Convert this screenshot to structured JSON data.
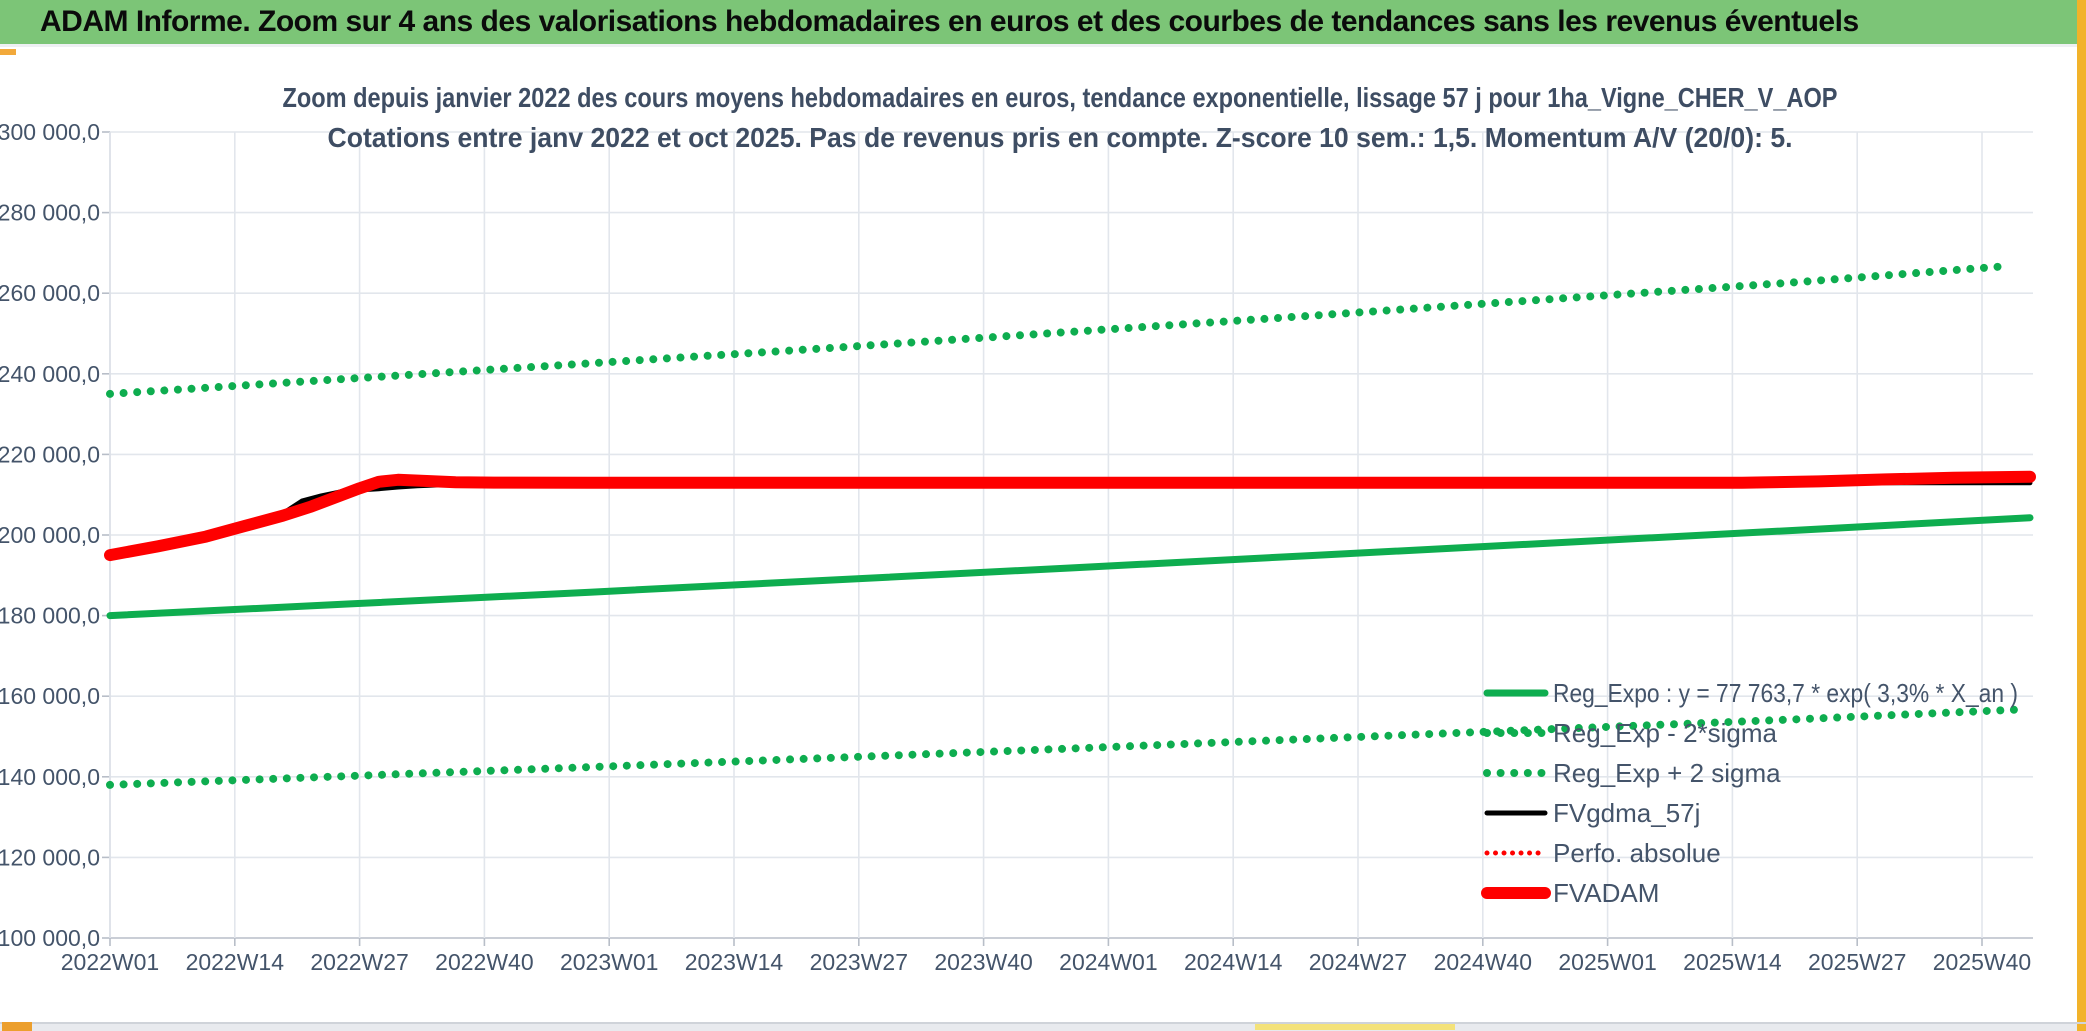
{
  "header": {
    "title": "ADAM Informe. Zoom sur 4 ans des valorisations hebdomadaires en euros et des courbes de tendances sans les revenus éventuels"
  },
  "frame": {
    "header_green": "#7CC577",
    "accent_gold": "#F2B32A",
    "accent_orange": "#EC9F2D"
  },
  "chart_data": {
    "type": "line",
    "title_line1": "Zoom depuis janvier 2022 des cours moyens hebdomadaires en euros, tendance exponentielle, lissage 57 j pour 1ha_Vigne_CHER_V_AOP",
    "title_line2": "Cotations entre janv 2022 et oct 2025. Pas de revenus pris en compte. Z-score 10 sem.: 1,5. Momentum A/V (20/0): 5.",
    "grid": true,
    "legend_position": "inside-bottom-right",
    "ylim": [
      100000,
      300000
    ],
    "y_ticks": [
      300000,
      280000,
      260000,
      240000,
      220000,
      200000,
      180000,
      160000,
      140000,
      120000,
      100000
    ],
    "y_tick_labels": [
      "300 000,0",
      "280 000,0",
      "260 000,0",
      "240 000,0",
      "220 000,0",
      "200 000,0",
      "180 000,0",
      "160 000,0",
      "140 000,0",
      "120 000,0",
      "100 000,0"
    ],
    "x_tick_labels": [
      "2022W01",
      "2022W14",
      "2022W27",
      "2022W40",
      "2023W01",
      "2023W14",
      "2023W27",
      "2023W40",
      "2024W01",
      "2024W14",
      "2024W27",
      "2024W40",
      "2025W01",
      "2025W14",
      "2025W27",
      "2025W40"
    ],
    "x_tick_weeks": [
      0,
      13,
      26,
      39,
      52,
      65,
      78,
      91,
      104,
      117,
      130,
      143,
      156,
      169,
      182,
      195
    ],
    "x_range_weeks": [
      0,
      200
    ],
    "series": [
      {
        "name": "Reg_Expo : y = 77 763,7 * exp( 3,3% * X_an )",
        "color": "#0EAD4F",
        "style": "solid",
        "width": 7,
        "z": 2,
        "points": [
          [
            0,
            180000
          ],
          [
            25,
            182900
          ],
          [
            50,
            185800
          ],
          [
            75,
            188800
          ],
          [
            100,
            191800
          ],
          [
            125,
            194900
          ],
          [
            150,
            198000
          ],
          [
            175,
            201100
          ],
          [
            200,
            204300
          ]
        ]
      },
      {
        "name": "Reg_Exp - 2*sigma",
        "color": "#0EAD4F",
        "style": "dotted",
        "width": 8,
        "z": 0,
        "points": [
          [
            0,
            138000
          ],
          [
            25,
            140200
          ],
          [
            50,
            142400
          ],
          [
            75,
            144700
          ],
          [
            100,
            147000
          ],
          [
            125,
            149400
          ],
          [
            150,
            151800
          ],
          [
            175,
            154200
          ],
          [
            199,
            156700
          ]
        ]
      },
      {
        "name": "Reg_Exp + 2 sigma",
        "color": "#0EAD4F",
        "style": "dotted",
        "width": 8,
        "z": 1,
        "points": [
          [
            0,
            235000
          ],
          [
            25,
            238800
          ],
          [
            50,
            242600
          ],
          [
            75,
            246400
          ],
          [
            100,
            250400
          ],
          [
            125,
            254400
          ],
          [
            150,
            258500
          ],
          [
            175,
            262600
          ],
          [
            198,
            266800
          ]
        ]
      },
      {
        "name": "FVgdma_57j",
        "color": "#000000",
        "style": "solid",
        "width": 5,
        "z": 4,
        "points": [
          [
            0,
            195000
          ],
          [
            6,
            197400
          ],
          [
            12,
            200200
          ],
          [
            16,
            203400
          ],
          [
            18,
            205300
          ],
          [
            20,
            208400
          ],
          [
            22,
            209700
          ],
          [
            24,
            210700
          ],
          [
            26,
            211200
          ],
          [
            28,
            211500
          ],
          [
            30,
            211900
          ],
          [
            32,
            212200
          ],
          [
            35,
            212500
          ],
          [
            38,
            212750
          ],
          [
            42,
            212900
          ],
          [
            48,
            212950
          ],
          [
            200,
            212950
          ]
        ]
      },
      {
        "name": "Perfo. absolue",
        "color": "#FE0000",
        "style": "dotted",
        "width": 5,
        "z": 3,
        "points": [
          [
            0,
            195000
          ],
          [
            5,
            197200
          ],
          [
            10,
            199600
          ],
          [
            14,
            202200
          ],
          [
            18,
            204800
          ],
          [
            21,
            207100
          ],
          [
            24,
            209800
          ],
          [
            26,
            211600
          ],
          [
            28,
            213200
          ],
          [
            30,
            213700
          ],
          [
            33,
            213400
          ],
          [
            36,
            213100
          ],
          [
            40,
            213000
          ],
          [
            50,
            212950
          ],
          [
            170,
            212950
          ],
          [
            178,
            213300
          ],
          [
            185,
            213800
          ],
          [
            192,
            214200
          ],
          [
            200,
            214450
          ]
        ]
      },
      {
        "name": "FVADAM",
        "color": "#FE0000",
        "style": "solid",
        "width": 12,
        "z": 5,
        "points": [
          [
            0,
            195000
          ],
          [
            5,
            197200
          ],
          [
            10,
            199600
          ],
          [
            14,
            202200
          ],
          [
            18,
            204800
          ],
          [
            21,
            207100
          ],
          [
            24,
            209800
          ],
          [
            26,
            211600
          ],
          [
            28,
            213200
          ],
          [
            30,
            213700
          ],
          [
            33,
            213400
          ],
          [
            36,
            213100
          ],
          [
            40,
            213000
          ],
          [
            50,
            212950
          ],
          [
            170,
            212950
          ],
          [
            178,
            213300
          ],
          [
            185,
            213800
          ],
          [
            192,
            214200
          ],
          [
            200,
            214450
          ]
        ]
      }
    ]
  }
}
